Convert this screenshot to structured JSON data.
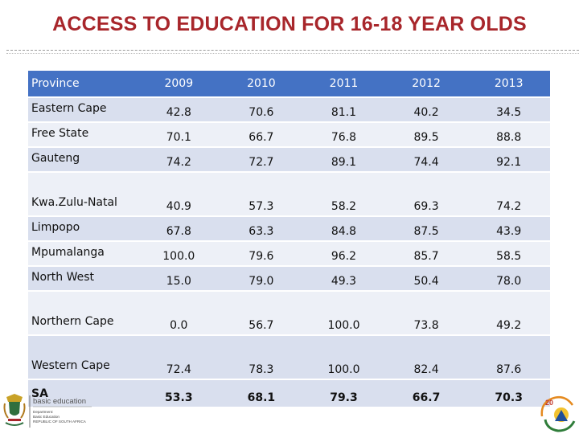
{
  "title": "ACCESS TO EDUCATION FOR 16-18 YEAR OLDS",
  "table": {
    "headers": [
      "Province",
      "2009",
      "2010",
      "2011",
      "2012",
      "2013"
    ],
    "rows": [
      {
        "province": "Eastern Cape",
        "values": [
          "42.8",
          "70.6",
          "81.1",
          "40.2",
          "34.5"
        ]
      },
      {
        "province": "Free State",
        "values": [
          "70.1",
          "66.7",
          "76.8",
          "89.5",
          "88.8"
        ]
      },
      {
        "province": "Gauteng",
        "values": [
          "74.2",
          "72.7",
          "89.1",
          "74.4",
          "92.1"
        ]
      },
      {
        "province": "Kwa.Zulu-Natal",
        "values": [
          "40.9",
          "57.3",
          "58.2",
          "69.3",
          "74.2"
        ]
      },
      {
        "province": "Limpopo",
        "values": [
          "67.8",
          "63.3",
          "84.8",
          "87.5",
          "43.9"
        ]
      },
      {
        "province": "Mpumalanga",
        "values": [
          "100.0",
          "79.6",
          "96.2",
          "85.7",
          "58.5"
        ]
      },
      {
        "province": "North West",
        "values": [
          "15.0",
          "79.0",
          "49.3",
          "50.4",
          "78.0"
        ]
      },
      {
        "province": "Northern Cape",
        "values": [
          "0.0",
          "56.7",
          "100.0",
          "73.8",
          "49.2"
        ]
      },
      {
        "province": "Western Cape",
        "values": [
          "72.4",
          "78.3",
          "100.0",
          "82.4",
          "87.6"
        ]
      },
      {
        "province": "SA",
        "values": [
          "53.3",
          "68.1",
          "79.3",
          "66.7",
          "70.3"
        ]
      }
    ]
  },
  "footer": {
    "logo_left_name": "basic education",
    "logo_left_sub1": "Department:",
    "logo_left_sub2": "Basic Education",
    "logo_left_sub3": "REPUBLIC OF SOUTH AFRICA",
    "logo_right_text": "20"
  },
  "colors": {
    "title": "#a8262b",
    "header_bg": "#4472c4",
    "row_odd": "#d9dfee",
    "row_even": "#edf0f7"
  }
}
